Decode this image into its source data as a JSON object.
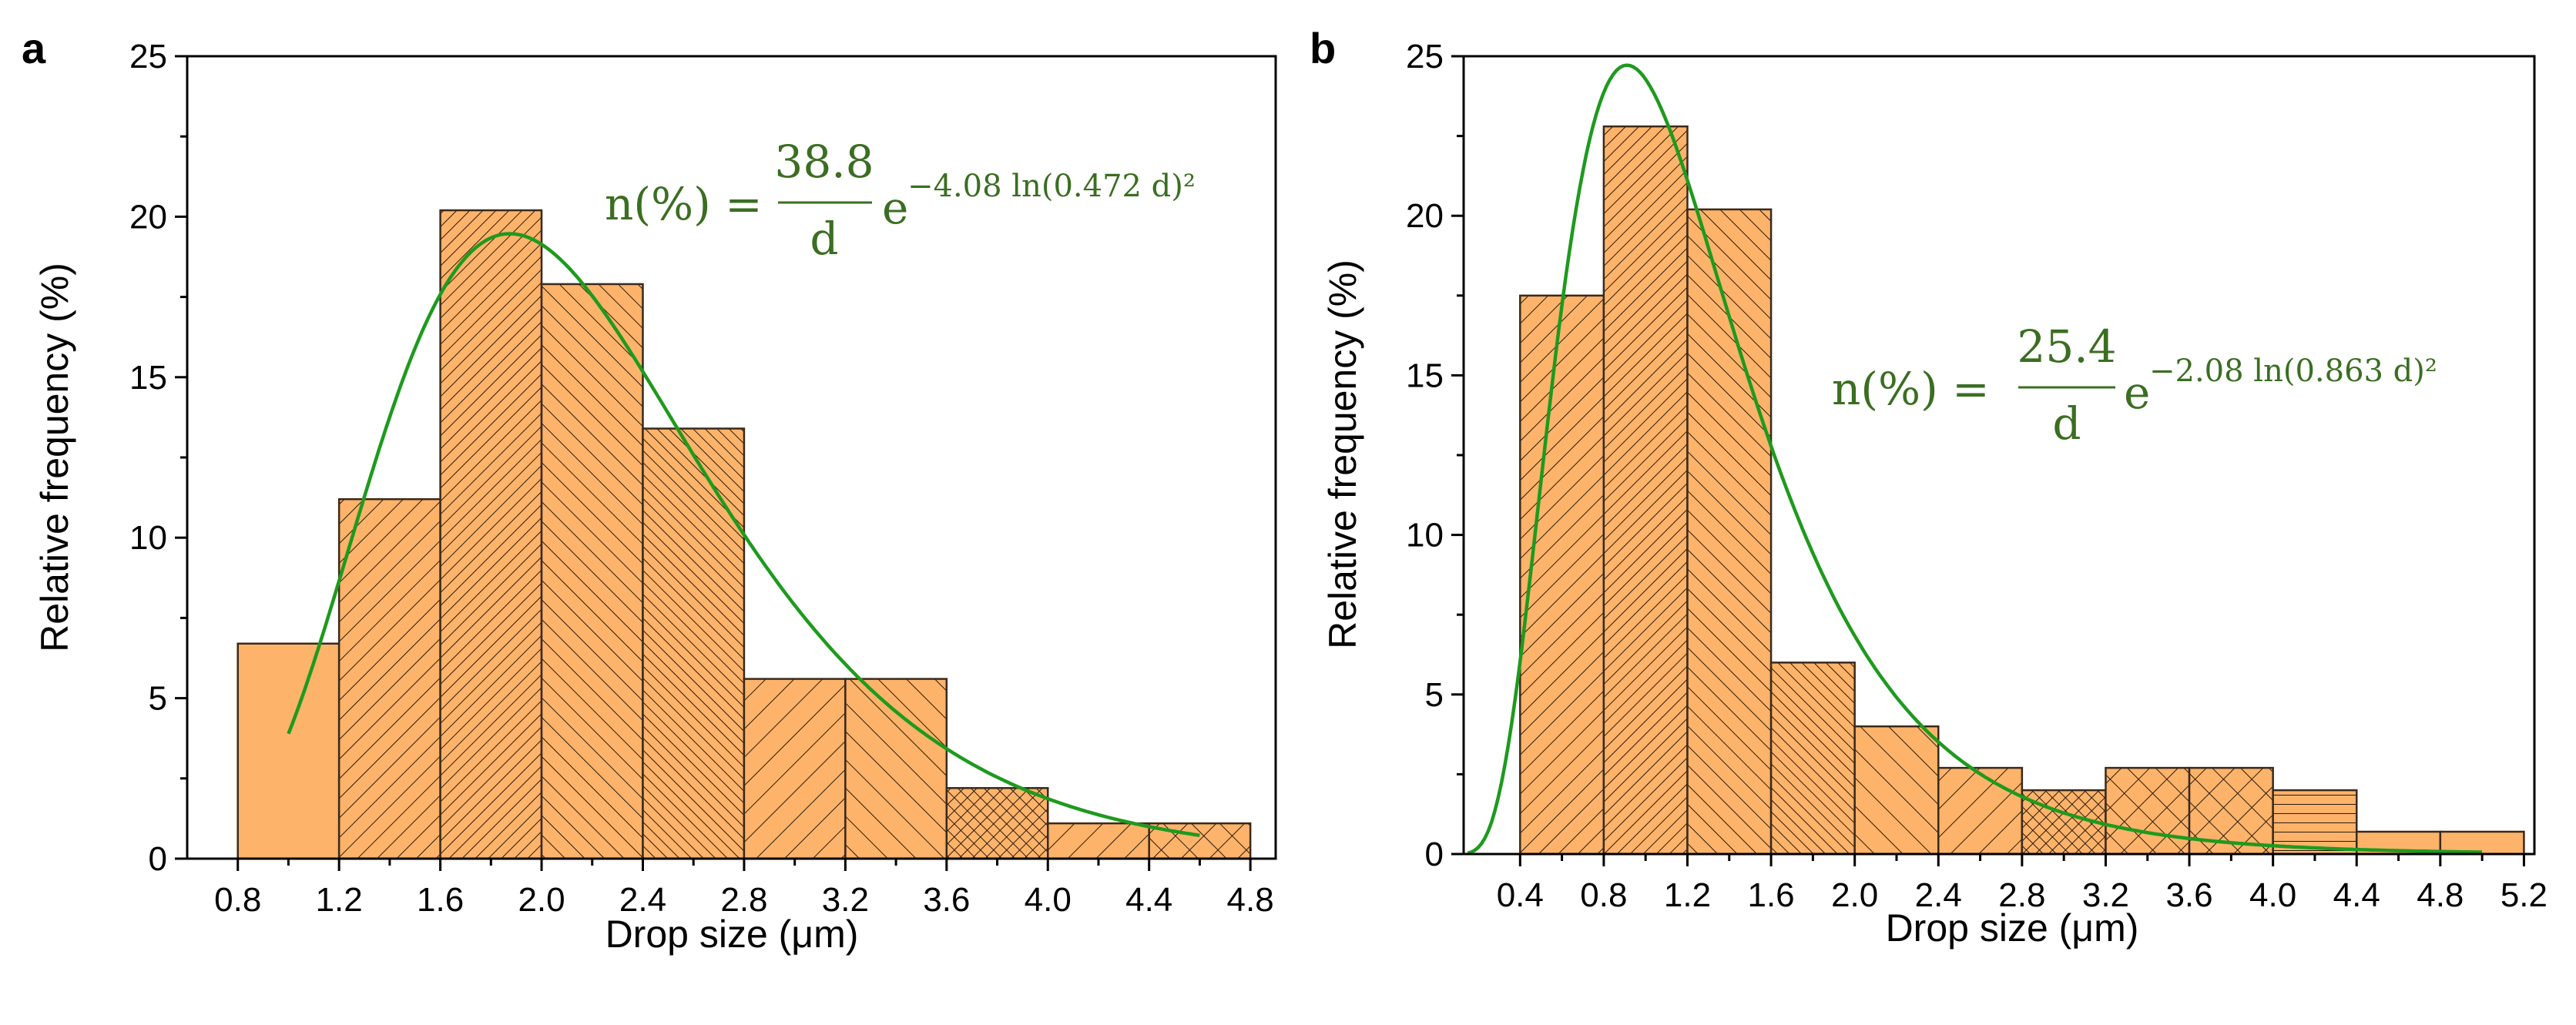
{
  "colors": {
    "bar_fill": "#fdb36a",
    "hatch": "#2b1a0a",
    "fit": "#1e9a1e",
    "equation": "#3b6e22"
  },
  "chart_data": [
    {
      "panel": "a",
      "type": "bar",
      "title": "",
      "xlabel": "Drop size (μm)",
      "ylabel": "Relative frequency (%)",
      "xlim": [
        0.6,
        4.9
      ],
      "ylim": [
        0,
        25
      ],
      "xticks": [
        "0.8",
        "1.2",
        "1.6",
        "2.0",
        "2.4",
        "2.8",
        "3.2",
        "3.6",
        "4.0",
        "4.4",
        "4.8"
      ],
      "yticks": [
        "0",
        "5",
        "10",
        "15",
        "20",
        "25"
      ],
      "bins": [
        {
          "from": 0.8,
          "to": 1.2,
          "value": 6.7,
          "hatch": "none"
        },
        {
          "from": 1.2,
          "to": 1.6,
          "value": 11.2,
          "hatch": "diag-right"
        },
        {
          "from": 1.6,
          "to": 2.0,
          "value": 20.2,
          "hatch": "diag-right-dense"
        },
        {
          "from": 2.0,
          "to": 2.4,
          "value": 17.9,
          "hatch": "diag-left"
        },
        {
          "from": 2.4,
          "to": 2.8,
          "value": 13.4,
          "hatch": "diag-left-dense"
        },
        {
          "from": 2.8,
          "to": 3.2,
          "value": 5.6,
          "hatch": "diag-right-wide"
        },
        {
          "from": 3.2,
          "to": 3.6,
          "value": 5.6,
          "hatch": "diag-left-wide"
        },
        {
          "from": 3.6,
          "to": 4.0,
          "value": 2.2,
          "hatch": "cross-dense"
        },
        {
          "from": 4.0,
          "to": 4.4,
          "value": 1.1,
          "hatch": "diag-right-wide"
        },
        {
          "from": 4.4,
          "to": 4.8,
          "value": 1.1,
          "hatch": "cross-wide"
        }
      ],
      "fit": {
        "A": 38.8,
        "B": 4.08,
        "C": 0.472,
        "xmin": 1.0,
        "xmax": 4.6
      },
      "equation": {
        "lhs": "n(%) =",
        "numerator": "38.8",
        "denominator": "d",
        "base": "e",
        "exponent": "−4.08 ln(0.472 d)²"
      }
    },
    {
      "panel": "b",
      "type": "bar",
      "title": "",
      "xlabel": "Drop size (μm)",
      "ylabel": "Relative frequency (%)",
      "xlim": [
        0.13,
        5.25
      ],
      "ylim": [
        0,
        25
      ],
      "xticks": [
        "0.4",
        "0.8",
        "1.2",
        "1.6",
        "2.0",
        "2.4",
        "2.8",
        "3.2",
        "3.6",
        "4.0",
        "4.4",
        "4.8",
        "5.2"
      ],
      "yticks": [
        "0",
        "5",
        "10",
        "15",
        "20",
        "25"
      ],
      "bins": [
        {
          "from": 0.4,
          "to": 0.8,
          "value": 17.5,
          "hatch": "diag-right"
        },
        {
          "from": 0.8,
          "to": 1.2,
          "value": 22.8,
          "hatch": "diag-right-dense"
        },
        {
          "from": 1.2,
          "to": 1.6,
          "value": 20.2,
          "hatch": "diag-left"
        },
        {
          "from": 1.6,
          "to": 2.0,
          "value": 6.0,
          "hatch": "diag-left-dense"
        },
        {
          "from": 2.0,
          "to": 2.4,
          "value": 4.0,
          "hatch": "diag-left-wide"
        },
        {
          "from": 2.4,
          "to": 2.8,
          "value": 2.7,
          "hatch": "diag-right-wide"
        },
        {
          "from": 2.8,
          "to": 3.2,
          "value": 2.0,
          "hatch": "cross-dense"
        },
        {
          "from": 3.2,
          "to": 3.6,
          "value": 2.7,
          "hatch": "cross-wide"
        },
        {
          "from": 3.6,
          "to": 4.0,
          "value": 2.7,
          "hatch": "cross-wide"
        },
        {
          "from": 4.0,
          "to": 4.4,
          "value": 2.0,
          "hatch": "horizontal"
        },
        {
          "from": 4.4,
          "to": 4.8,
          "value": 0.7,
          "hatch": "none"
        },
        {
          "from": 4.8,
          "to": 5.2,
          "value": 0.7,
          "hatch": "none"
        }
      ],
      "fit": {
        "A": 25.4,
        "B": 2.08,
        "C": 0.863,
        "xmin": 0.15,
        "xmax": 5.0
      },
      "equation": {
        "lhs": "n(%) =",
        "numerator": "25.4",
        "denominator": "d",
        "base": "e",
        "exponent": "−2.08 ln(0.863 d)²"
      }
    }
  ]
}
